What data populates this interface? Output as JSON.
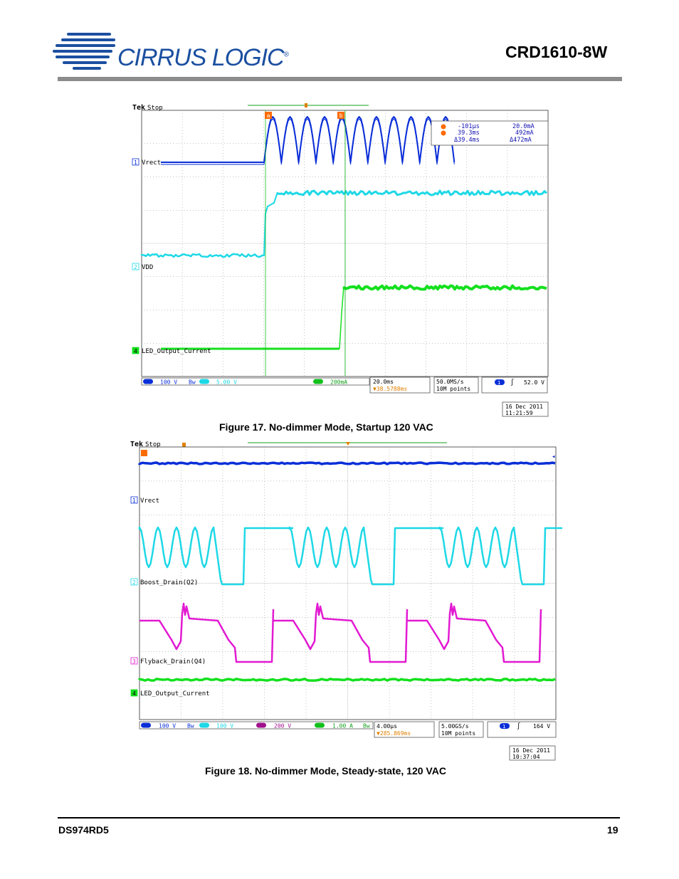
{
  "header": {
    "brand": "CIRRUS LOGIC",
    "trademark": "®",
    "doc_title": "CRD1610-8W"
  },
  "figure17": {
    "caption": "Figure 17.  No-dimmer Mode, Startup 120 VAC",
    "tek_brand": "Tek",
    "tek_state": "Stop",
    "channel_labels": [
      "Vrect",
      "VDD",
      "LED_Output_Current"
    ],
    "channel_numbers": [
      "1",
      "2",
      "4"
    ],
    "cursor_markers": [
      "a",
      "b"
    ],
    "cursor_readout": {
      "a_time": "-101µs",
      "a_value": "20.0mA",
      "b_time": "39.3ms",
      "b_value": "492mA",
      "delta_time": "Δ39.4ms",
      "delta_value": "Δ472mA"
    },
    "status": {
      "ch1": "100 V",
      "ch2": "5.00 V",
      "ch4": "200mA",
      "timebase": "20.0ms",
      "trigger_pos": "▼38.5788ms",
      "sample_rate": "50.0MS/s",
      "record": "10M points",
      "trigger_ch": "1",
      "trigger_level": "52.0 V"
    },
    "date": "16 Dec  2011",
    "time": "11:21:59"
  },
  "figure18": {
    "caption": "Figure 18.  No-dimmer Mode, Steady-state, 120 VAC",
    "tek_brand": "Tek",
    "tek_state": "Stop",
    "channel_labels": [
      "Vrect",
      "Boost_Drain(Q2)",
      "Flyback_Drain(Q4)",
      "LED_Output_Current"
    ],
    "channel_numbers": [
      "1",
      "2",
      "3",
      "4"
    ],
    "status": {
      "ch1": "100 V",
      "ch2": "100 V",
      "ch3": "200 V",
      "ch4": "1.00 A",
      "timebase": "4.00µs",
      "trigger_pos": "▼285.869ms",
      "sample_rate": "5.00GS/s",
      "record": "10M points",
      "trigger_ch": "1",
      "trigger_level": "164 V"
    },
    "date": "16 Dec  2011",
    "time": "10:37:04"
  },
  "footer": {
    "doc_id": "DS974RD5",
    "page_number": "19"
  },
  "colors": {
    "ch1": "#0a2fd8",
    "ch2": "#1ed8e6",
    "ch3": "#e21ad2",
    "ch4": "#14e01e",
    "cursor": "#ff6a00",
    "grid": "#8a8a8a",
    "brand": "#1b4fa0"
  }
}
